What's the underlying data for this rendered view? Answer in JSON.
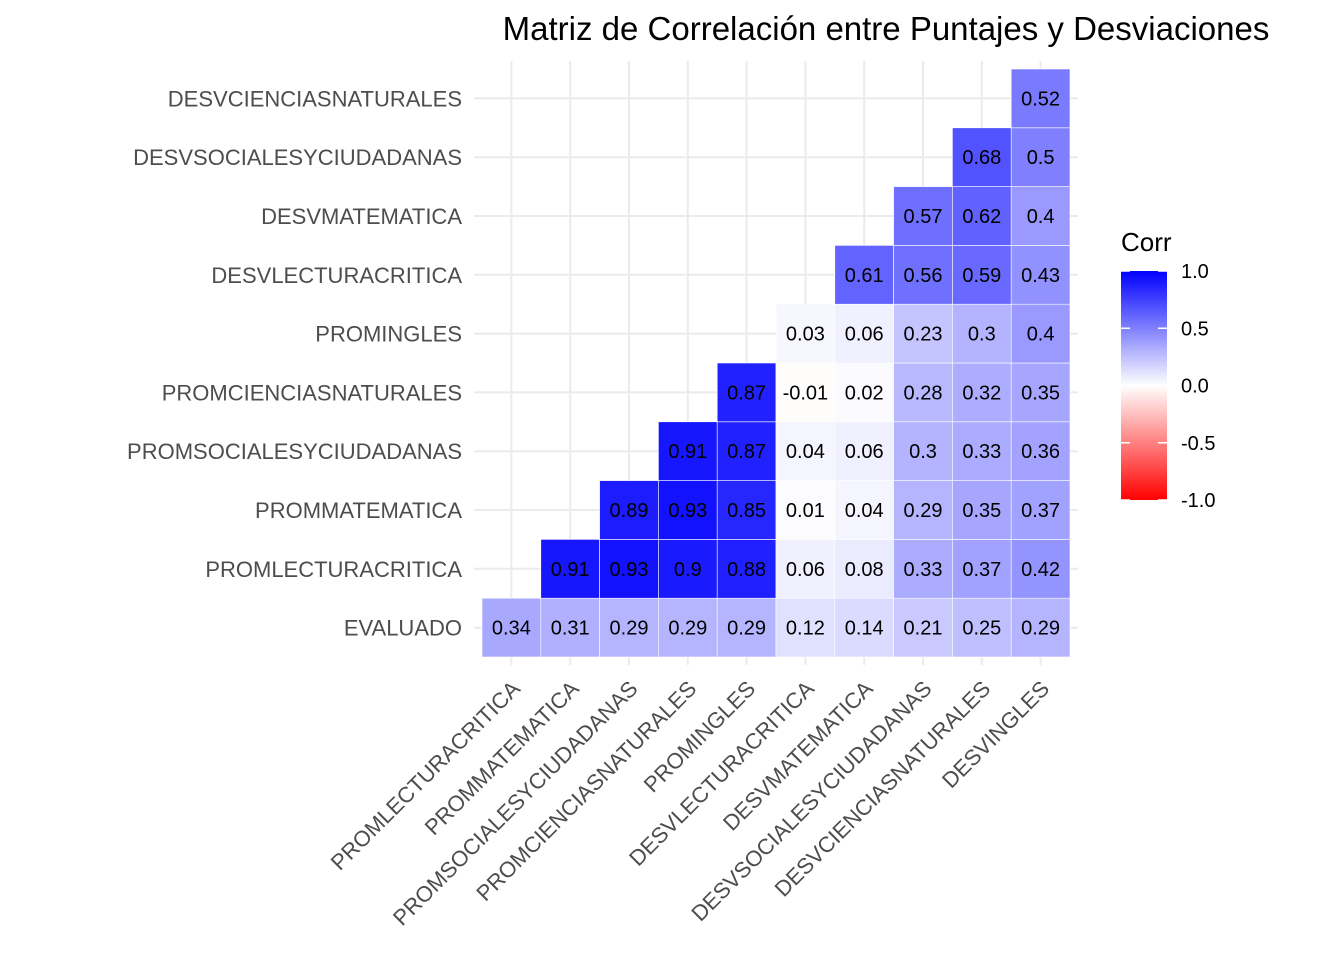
{
  "chart_data": {
    "type": "heatmap",
    "title": "Matriz de Correlación entre Puntajes y Desviaciones",
    "x_categories": [
      "PROMLECTURACRITICA",
      "PROMMATEMATICA",
      "PROMSOCIALESYCIUDADANAS",
      "PROMCIENCIASNATURALES",
      "PROMINGLES",
      "DESVLECTURACRITICA",
      "DESVMATEMATICA",
      "DESVSOCIALESYCIUDADANAS",
      "DESVCIENCIASNATURALES",
      "DESVINGLES"
    ],
    "y_categories": [
      "EVALUADO",
      "PROMLECTURACRITICA",
      "PROMMATEMATICA",
      "PROMSOCIALESYCIUDADANAS",
      "PROMCIENCIASNATURALES",
      "PROMINGLES",
      "DESVLECTURACRITICA",
      "DESVMATEMATICA",
      "DESVSOCIALESYCIUDADANAS",
      "DESVCIENCIASNATURALES"
    ],
    "cells": [
      {
        "x": "PROMLECTURACRITICA",
        "y": "EVALUADO",
        "value": 0.34,
        "label": "0.34"
      },
      {
        "x": "PROMMATEMATICA",
        "y": "EVALUADO",
        "value": 0.31,
        "label": "0.31"
      },
      {
        "x": "PROMSOCIALESYCIUDADANAS",
        "y": "EVALUADO",
        "value": 0.29,
        "label": "0.29"
      },
      {
        "x": "PROMCIENCIASNATURALES",
        "y": "EVALUADO",
        "value": 0.29,
        "label": "0.29"
      },
      {
        "x": "PROMINGLES",
        "y": "EVALUADO",
        "value": 0.29,
        "label": "0.29"
      },
      {
        "x": "DESVLECTURACRITICA",
        "y": "EVALUADO",
        "value": 0.12,
        "label": "0.12"
      },
      {
        "x": "DESVMATEMATICA",
        "y": "EVALUADO",
        "value": 0.14,
        "label": "0.14"
      },
      {
        "x": "DESVSOCIALESYCIUDADANAS",
        "y": "EVALUADO",
        "value": 0.21,
        "label": "0.21"
      },
      {
        "x": "DESVCIENCIASNATURALES",
        "y": "EVALUADO",
        "value": 0.25,
        "label": "0.25"
      },
      {
        "x": "DESVINGLES",
        "y": "EVALUADO",
        "value": 0.29,
        "label": "0.29"
      },
      {
        "x": "PROMMATEMATICA",
        "y": "PROMLECTURACRITICA",
        "value": 0.91,
        "label": "0.91"
      },
      {
        "x": "PROMSOCIALESYCIUDADANAS",
        "y": "PROMLECTURACRITICA",
        "value": 0.93,
        "label": "0.93"
      },
      {
        "x": "PROMCIENCIASNATURALES",
        "y": "PROMLECTURACRITICA",
        "value": 0.9,
        "label": "0.9"
      },
      {
        "x": "PROMINGLES",
        "y": "PROMLECTURACRITICA",
        "value": 0.88,
        "label": "0.88"
      },
      {
        "x": "DESVLECTURACRITICA",
        "y": "PROMLECTURACRITICA",
        "value": 0.06,
        "label": "0.06"
      },
      {
        "x": "DESVMATEMATICA",
        "y": "PROMLECTURACRITICA",
        "value": 0.08,
        "label": "0.08"
      },
      {
        "x": "DESVSOCIALESYCIUDADANAS",
        "y": "PROMLECTURACRITICA",
        "value": 0.33,
        "label": "0.33"
      },
      {
        "x": "DESVCIENCIASNATURALES",
        "y": "PROMLECTURACRITICA",
        "value": 0.37,
        "label": "0.37"
      },
      {
        "x": "DESVINGLES",
        "y": "PROMLECTURACRITICA",
        "value": 0.42,
        "label": "0.42"
      },
      {
        "x": "PROMSOCIALESYCIUDADANAS",
        "y": "PROMMATEMATICA",
        "value": 0.89,
        "label": "0.89"
      },
      {
        "x": "PROMCIENCIASNATURALES",
        "y": "PROMMATEMATICA",
        "value": 0.93,
        "label": "0.93"
      },
      {
        "x": "PROMINGLES",
        "y": "PROMMATEMATICA",
        "value": 0.85,
        "label": "0.85"
      },
      {
        "x": "DESVLECTURACRITICA",
        "y": "PROMMATEMATICA",
        "value": 0.01,
        "label": "0.01"
      },
      {
        "x": "DESVMATEMATICA",
        "y": "PROMMATEMATICA",
        "value": 0.04,
        "label": "0.04"
      },
      {
        "x": "DESVSOCIALESYCIUDADANAS",
        "y": "PROMMATEMATICA",
        "value": 0.29,
        "label": "0.29"
      },
      {
        "x": "DESVCIENCIASNATURALES",
        "y": "PROMMATEMATICA",
        "value": 0.35,
        "label": "0.35"
      },
      {
        "x": "DESVINGLES",
        "y": "PROMMATEMATICA",
        "value": 0.37,
        "label": "0.37"
      },
      {
        "x": "PROMCIENCIASNATURALES",
        "y": "PROMSOCIALESYCIUDADANAS",
        "value": 0.91,
        "label": "0.91"
      },
      {
        "x": "PROMINGLES",
        "y": "PROMSOCIALESYCIUDADANAS",
        "value": 0.87,
        "label": "0.87"
      },
      {
        "x": "DESVLECTURACRITICA",
        "y": "PROMSOCIALESYCIUDADANAS",
        "value": 0.04,
        "label": "0.04"
      },
      {
        "x": "DESVMATEMATICA",
        "y": "PROMSOCIALESYCIUDADANAS",
        "value": 0.06,
        "label": "0.06"
      },
      {
        "x": "DESVSOCIALESYCIUDADANAS",
        "y": "PROMSOCIALESYCIUDADANAS",
        "value": 0.3,
        "label": "0.3"
      },
      {
        "x": "DESVCIENCIASNATURALES",
        "y": "PROMSOCIALESYCIUDADANAS",
        "value": 0.33,
        "label": "0.33"
      },
      {
        "x": "DESVINGLES",
        "y": "PROMSOCIALESYCIUDADANAS",
        "value": 0.36,
        "label": "0.36"
      },
      {
        "x": "PROMINGLES",
        "y": "PROMCIENCIASNATURALES",
        "value": 0.87,
        "label": "0.87"
      },
      {
        "x": "DESVLECTURACRITICA",
        "y": "PROMCIENCIASNATURALES",
        "value": -0.01,
        "label": "-0.01"
      },
      {
        "x": "DESVMATEMATICA",
        "y": "PROMCIENCIASNATURALES",
        "value": 0.02,
        "label": "0.02"
      },
      {
        "x": "DESVSOCIALESYCIUDADANAS",
        "y": "PROMCIENCIASNATURALES",
        "value": 0.28,
        "label": "0.28"
      },
      {
        "x": "DESVCIENCIASNATURALES",
        "y": "PROMCIENCIASNATURALES",
        "value": 0.32,
        "label": "0.32"
      },
      {
        "x": "DESVINGLES",
        "y": "PROMCIENCIASNATURALES",
        "value": 0.35,
        "label": "0.35"
      },
      {
        "x": "DESVLECTURACRITICA",
        "y": "PROMINGLES",
        "value": 0.03,
        "label": "0.03"
      },
      {
        "x": "DESVMATEMATICA",
        "y": "PROMINGLES",
        "value": 0.06,
        "label": "0.06"
      },
      {
        "x": "DESVSOCIALESYCIUDADANAS",
        "y": "PROMINGLES",
        "value": 0.23,
        "label": "0.23"
      },
      {
        "x": "DESVCIENCIASNATURALES",
        "y": "PROMINGLES",
        "value": 0.3,
        "label": "0.3"
      },
      {
        "x": "DESVINGLES",
        "y": "PROMINGLES",
        "value": 0.4,
        "label": "0.4"
      },
      {
        "x": "DESVMATEMATICA",
        "y": "DESVLECTURACRITICA",
        "value": 0.61,
        "label": "0.61"
      },
      {
        "x": "DESVSOCIALESYCIUDADANAS",
        "y": "DESVLECTURACRITICA",
        "value": 0.56,
        "label": "0.56"
      },
      {
        "x": "DESVCIENCIASNATURALES",
        "y": "DESVLECTURACRITICA",
        "value": 0.59,
        "label": "0.59"
      },
      {
        "x": "DESVINGLES",
        "y": "DESVLECTURACRITICA",
        "value": 0.43,
        "label": "0.43"
      },
      {
        "x": "DESVSOCIALESYCIUDADANAS",
        "y": "DESVMATEMATICA",
        "value": 0.57,
        "label": "0.57"
      },
      {
        "x": "DESVCIENCIASNATURALES",
        "y": "DESVMATEMATICA",
        "value": 0.62,
        "label": "0.62"
      },
      {
        "x": "DESVINGLES",
        "y": "DESVMATEMATICA",
        "value": 0.4,
        "label": "0.4"
      },
      {
        "x": "DESVCIENCIASNATURALES",
        "y": "DESVSOCIALESYCIUDADANAS",
        "value": 0.68,
        "label": "0.68"
      },
      {
        "x": "DESVINGLES",
        "y": "DESVSOCIALESYCIUDADANAS",
        "value": 0.5,
        "label": "0.5"
      },
      {
        "x": "DESVINGLES",
        "y": "DESVCIENCIASNATURALES",
        "value": 0.52,
        "label": "0.52"
      }
    ],
    "color_scale": {
      "low": "#ff0000",
      "mid": "#ffffff",
      "high": "#0000ff",
      "limits": [
        -1,
        1
      ]
    },
    "legend": {
      "title": "Corr",
      "ticks": [
        1.0,
        0.5,
        0.0,
        -0.5,
        -1.0
      ],
      "tick_labels": [
        "1.0",
        "0.5",
        "0.0",
        "-0.5",
        "-1.0"
      ],
      "placement": "right"
    },
    "grid": true
  }
}
